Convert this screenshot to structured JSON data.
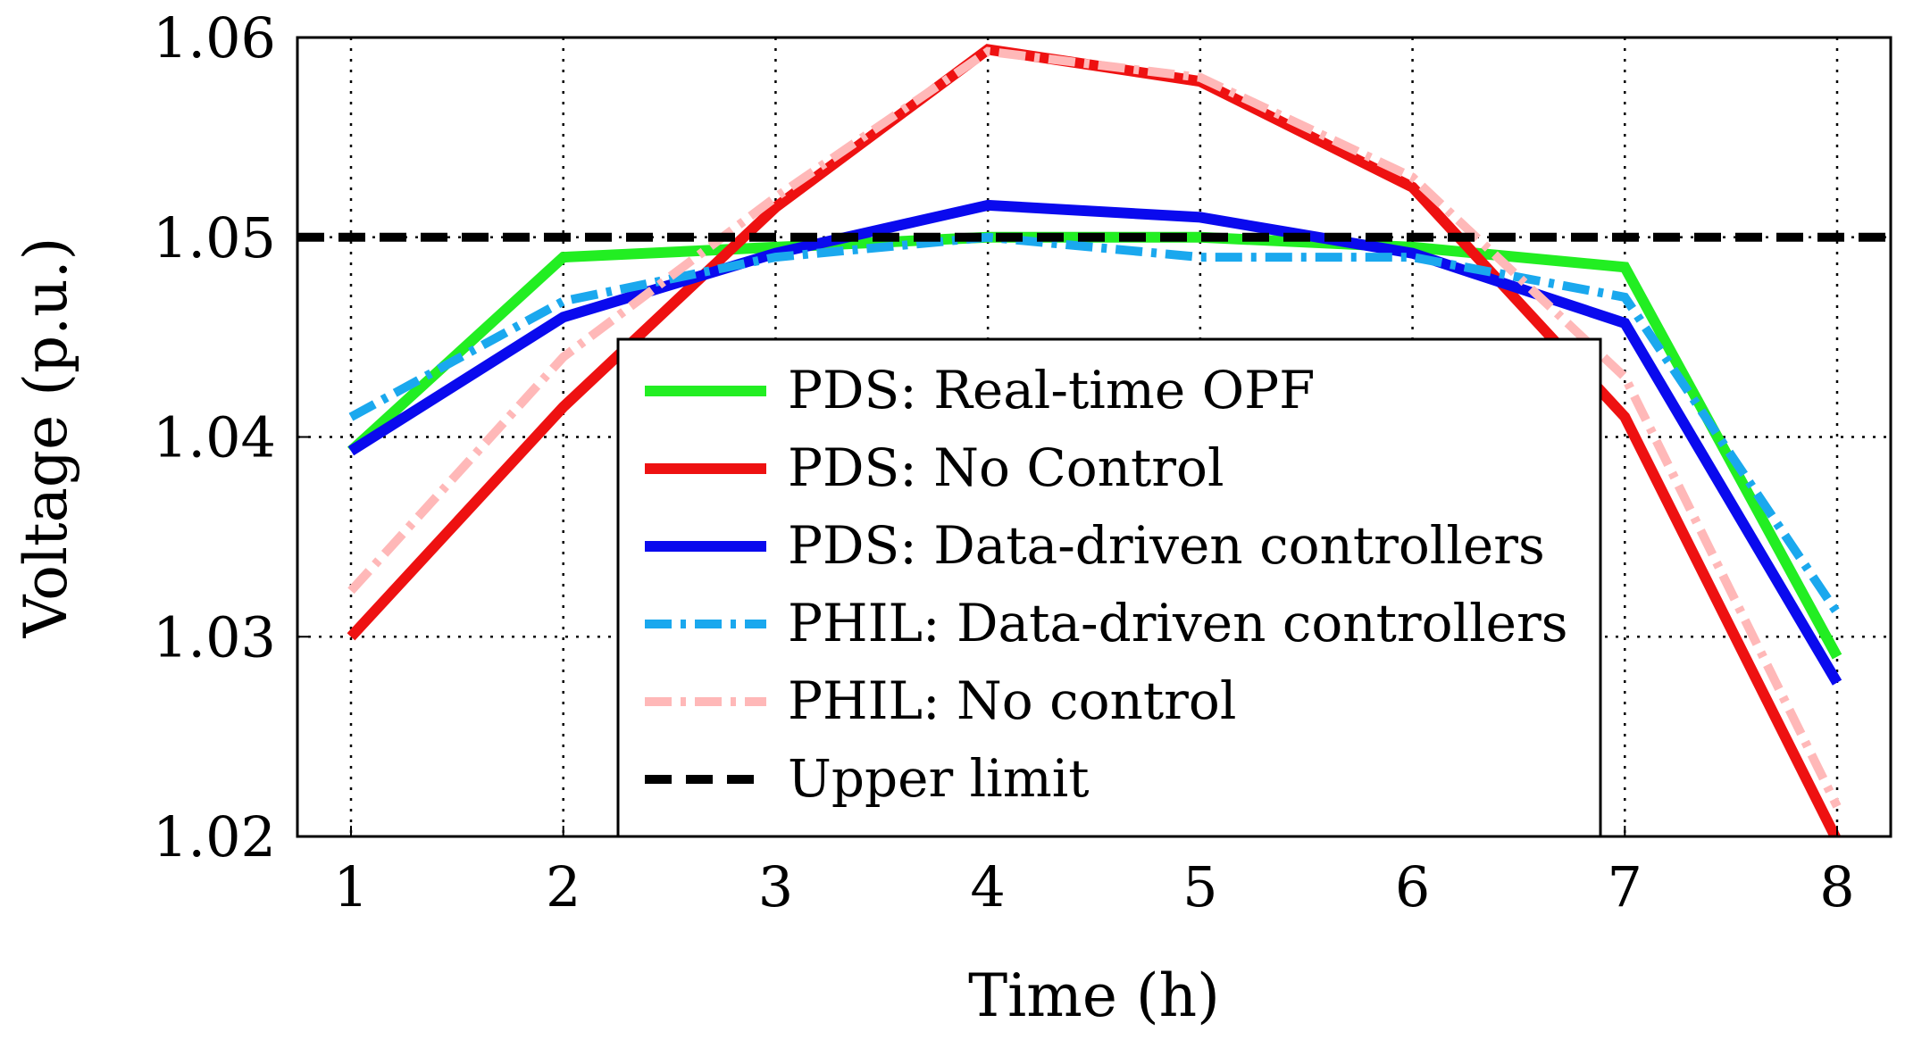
{
  "chart_data": {
    "type": "line",
    "title": "",
    "xlabel": "Time (h)",
    "ylabel": "Voltage (p.u.)",
    "xlim": [
      1,
      8
    ],
    "ylim": [
      1.02,
      1.06
    ],
    "x_ticks": [
      "1",
      "2",
      "3",
      "4",
      "5",
      "6",
      "7",
      "8"
    ],
    "y_ticks": [
      "1.02",
      "1.03",
      "1.04",
      "1.05",
      "1.06"
    ],
    "grid": true,
    "legend_position": "center",
    "x": [
      1,
      2,
      3,
      4,
      5,
      6,
      7,
      8
    ],
    "series": [
      {
        "name": "PDS: Real-time OPF",
        "color": "#22ee22",
        "style": "solid",
        "values": [
          1.0393,
          1.049,
          1.0495,
          1.05,
          1.05,
          1.0495,
          1.0485,
          1.029
        ]
      },
      {
        "name": "PDS: No Control",
        "color": "#ee1111",
        "style": "solid",
        "values": [
          1.03,
          1.0415,
          1.0515,
          1.0594,
          1.0578,
          1.0525,
          1.041,
          1.0198
        ]
      },
      {
        "name": "PDS: Data-driven controllers",
        "color": "#0a0aee",
        "style": "solid",
        "values": [
          1.0393,
          1.046,
          1.0492,
          1.0516,
          1.051,
          1.0492,
          1.0457,
          1.0277
        ]
      },
      {
        "name": "PHIL: Data-driven controllers",
        "color": "#1aa8ee",
        "style": "dashdot",
        "values": [
          1.041,
          1.0468,
          1.049,
          1.05,
          1.049,
          1.049,
          1.047,
          1.0312
        ]
      },
      {
        "name": "PHIL: No control",
        "color": "#ffb8b8",
        "style": "dashdot",
        "values": [
          1.0323,
          1.044,
          1.052,
          1.0593,
          1.058,
          1.053,
          1.043,
          1.0215
        ]
      },
      {
        "name": "Upper limit",
        "color": "#000000",
        "style": "dashed",
        "values": [
          1.05,
          1.05,
          1.05,
          1.05,
          1.05,
          1.05,
          1.05,
          1.05
        ]
      }
    ]
  }
}
